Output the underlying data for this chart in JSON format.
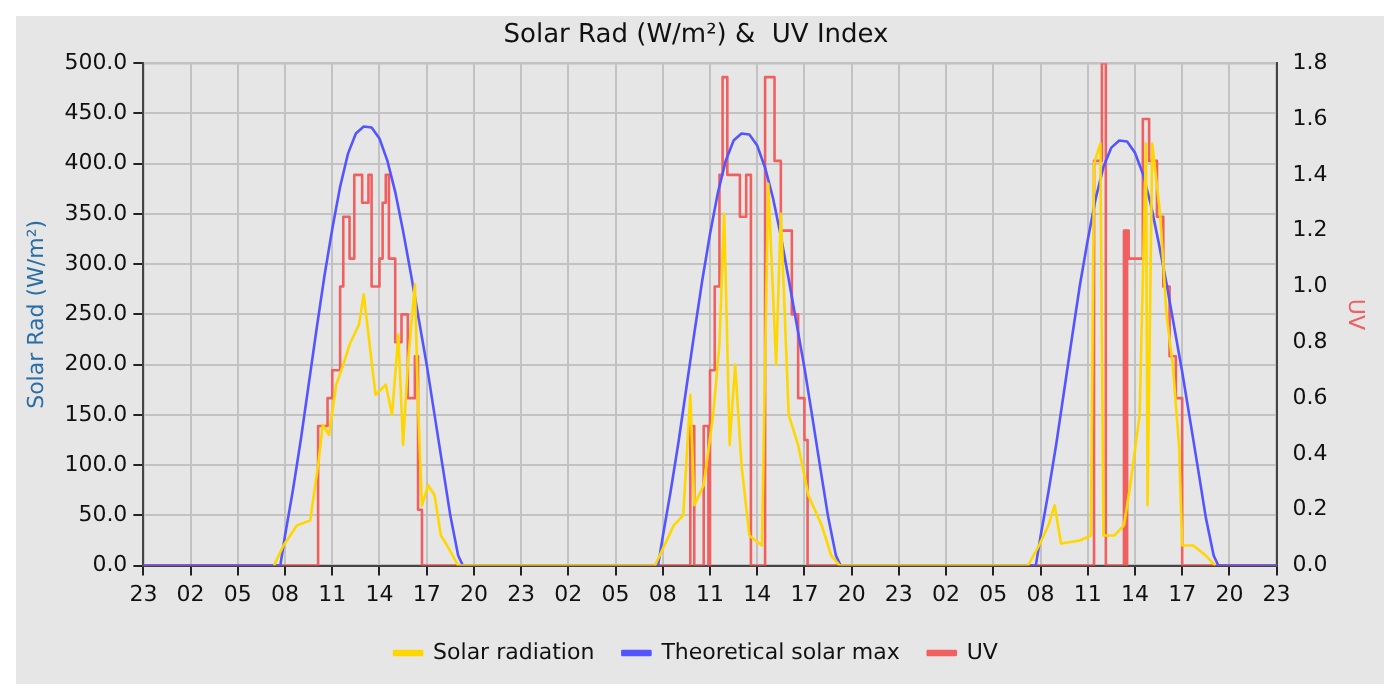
{
  "chart_data": {
    "type": "line",
    "title": "Solar Rad (W/m²) &  UV Index",
    "ylabel": "Solar Rad (W/m²)",
    "y2label": "UV",
    "xlim": [
      "--01-01T23:00",
      "--01-04T23:00"
    ],
    "xticks": [
      {
        "value": "--01-01T23:00",
        "label": "23"
      },
      {
        "value": "--01-02T02:00",
        "label": "02"
      },
      {
        "value": "--01-02T05:00",
        "label": "05"
      },
      {
        "value": "--01-02T08:00",
        "label": "08"
      },
      {
        "value": "--01-02T11:00",
        "label": "11"
      },
      {
        "value": "--01-02T14:00",
        "label": "14"
      },
      {
        "value": "--01-02T17:00",
        "label": "17"
      },
      {
        "value": "--01-02T20:00",
        "label": "20"
      },
      {
        "value": "--01-02T23:00",
        "label": "23"
      },
      {
        "value": "--01-03T02:00",
        "label": "02"
      },
      {
        "value": "--01-03T05:00",
        "label": "05"
      },
      {
        "value": "--01-03T08:00",
        "label": "08"
      },
      {
        "value": "--01-03T11:00",
        "label": "11"
      },
      {
        "value": "--01-03T14:00",
        "label": "14"
      },
      {
        "value": "--01-03T17:00",
        "label": "17"
      },
      {
        "value": "--01-03T20:00",
        "label": "20"
      },
      {
        "value": "--01-03T23:00",
        "label": "23"
      },
      {
        "value": "--01-04T02:00",
        "label": "02"
      },
      {
        "value": "--01-04T05:00",
        "label": "05"
      },
      {
        "value": "--01-04T08:00",
        "label": "08"
      },
      {
        "value": "--01-04T11:00",
        "label": "11"
      },
      {
        "value": "--01-04T14:00",
        "label": "14"
      },
      {
        "value": "--01-04T17:00",
        "label": "17"
      },
      {
        "value": "--01-04T20:00",
        "label": "20"
      },
      {
        "value": "--01-04T23:00",
        "label": "23"
      }
    ],
    "ylim": [
      0,
      500
    ],
    "yticks": [
      {
        "value": 0,
        "label": "0.0"
      },
      {
        "value": 50,
        "label": "50.0"
      },
      {
        "value": 100,
        "label": "100.0"
      },
      {
        "value": 150,
        "label": "150.0"
      },
      {
        "value": 200,
        "label": "200.0"
      },
      {
        "value": 250,
        "label": "250.0"
      },
      {
        "value": 300,
        "label": "300.0"
      },
      {
        "value": 350,
        "label": "350.0"
      },
      {
        "value": 400,
        "label": "400.0"
      },
      {
        "value": 450,
        "label": "450.0"
      },
      {
        "value": 500,
        "label": "500.0"
      }
    ],
    "y2lim": [
      0,
      1.8
    ],
    "y2ticks": [
      {
        "value": 0,
        "label": "0.0"
      },
      {
        "value": 0.2,
        "label": "0.2"
      },
      {
        "value": 0.4,
        "label": "0.4"
      },
      {
        "value": 0.6,
        "label": "0.6"
      },
      {
        "value": 0.8,
        "label": "0.8"
      },
      {
        "value": 1,
        "label": "1.0"
      },
      {
        "value": 1.2,
        "label": "1.2"
      },
      {
        "value": 1.4,
        "label": "1.4"
      },
      {
        "value": 1.6,
        "label": "1.6"
      },
      {
        "value": 1.8,
        "label": "1.8"
      }
    ],
    "grid": true,
    "legend": "bottom",
    "marker": "none",
    "series": [
      {
        "name": "Solar radiation",
        "color": "#ffd700",
        "x": [
          "--01-02T07:18",
          "--01-02T07:54",
          "--01-02T08:45",
          "--01-02T09:36",
          "--01-02T10:06",
          "--01-02T10:24",
          "--01-02T10:48",
          "--01-02T11:15",
          "--01-02T11:42",
          "--01-02T12:06",
          "--01-02T12:42",
          "--01-02T13:00",
          "--01-02T13:18",
          "--01-02T13:45",
          "--01-02T14:24",
          "--01-02T14:48",
          "--01-02T15:12",
          "--01-02T15:30",
          "--01-02T15:48",
          "--01-02T16:15",
          "--01-02T16:27",
          "--01-02T16:42",
          "--01-02T17:06",
          "--01-02T17:30",
          "--01-02T17:54",
          "--01-02T18:18",
          "--01-02T19:00",
          "--01-03T07:30",
          "--01-03T08:06",
          "--01-03T08:42",
          "--01-03T09:18",
          "--01-03T09:45",
          "--01-03T10:00",
          "--01-03T10:36",
          "--01-03T11:12",
          "--01-03T11:36",
          "--01-03T11:54",
          "--01-03T12:15",
          "--01-03T12:36",
          "--01-03T13:00",
          "--01-03T13:30",
          "--01-03T14:18",
          "--01-03T14:42",
          "--01-03T15:12",
          "--01-03T15:30",
          "--01-03T16:00",
          "--01-03T16:36",
          "--01-03T17:15",
          "--01-03T18:06",
          "--01-03T18:42",
          "--01-03T19:15",
          "--01-04T07:12",
          "--01-04T07:54",
          "--01-04T08:30",
          "--01-04T08:54",
          "--01-04T09:18",
          "--01-04T10:30",
          "--01-04T11:12",
          "--01-04T11:24",
          "--01-04T11:48",
          "--01-04T12:00",
          "--01-04T12:42",
          "--01-04T13:18",
          "--01-04T13:42",
          "--01-04T14:18",
          "--01-04T14:42",
          "--01-04T14:48",
          "--01-04T15:06",
          "--01-04T15:36",
          "--01-04T16:00",
          "--01-04T16:24",
          "--01-04T16:48",
          "--01-04T17:00",
          "--01-04T17:42",
          "--01-04T18:30",
          "--01-04T19:06"
        ],
        "values": [
          0,
          20,
          40,
          45,
          100,
          140,
          130,
          180,
          200,
          220,
          240,
          270,
          230,
          170,
          180,
          150,
          230,
          120,
          200,
          280,
          160,
          60,
          80,
          70,
          30,
          20,
          0,
          0,
          20,
          40,
          50,
          170,
          60,
          80,
          150,
          220,
          350,
          120,
          200,
          100,
          30,
          20,
          380,
          200,
          350,
          150,
          120,
          70,
          40,
          10,
          0,
          0,
          20,
          40,
          60,
          22,
          25,
          30,
          400,
          420,
          30,
          30,
          40,
          80,
          150,
          420,
          60,
          420,
          350,
          250,
          200,
          120,
          20,
          20,
          10,
          0
        ]
      },
      {
        "name": "Theoretical solar max",
        "color": "#5555ff",
        "x": [
          "--01-01T23:00",
          "--01-02T07:42",
          "--01-02T08:00",
          "--01-02T08:30",
          "--01-02T09:00",
          "--01-02T09:30",
          "--01-02T10:00",
          "--01-02T10:30",
          "--01-02T11:00",
          "--01-02T11:30",
          "--01-02T12:00",
          "--01-02T12:30",
          "--01-02T13:00",
          "--01-02T13:30",
          "--01-02T14:00",
          "--01-02T14:30",
          "--01-02T15:00",
          "--01-02T15:30",
          "--01-02T16:00",
          "--01-02T16:30",
          "--01-02T17:00",
          "--01-02T17:30",
          "--01-02T18:00",
          "--01-02T18:30",
          "--01-02T19:00",
          "--01-02T19:18",
          "--01-03T07:42",
          "--01-03T08:00",
          "--01-03T08:30",
          "--01-03T09:00",
          "--01-03T09:30",
          "--01-03T10:00",
          "--01-03T10:30",
          "--01-03T11:00",
          "--01-03T11:30",
          "--01-03T12:00",
          "--01-03T12:30",
          "--01-03T13:00",
          "--01-03T13:30",
          "--01-03T14:00",
          "--01-03T14:30",
          "--01-03T15:00",
          "--01-03T15:30",
          "--01-03T16:00",
          "--01-03T16:30",
          "--01-03T17:00",
          "--01-03T17:30",
          "--01-03T18:00",
          "--01-03T18:30",
          "--01-03T19:00",
          "--01-03T19:18",
          "--01-04T07:42",
          "--01-04T08:00",
          "--01-04T08:30",
          "--01-04T09:00",
          "--01-04T09:30",
          "--01-04T10:00",
          "--01-04T10:30",
          "--01-04T11:00",
          "--01-04T11:30",
          "--01-04T12:00",
          "--01-04T12:30",
          "--01-04T13:00",
          "--01-04T13:30",
          "--01-04T14:00",
          "--01-04T14:30",
          "--01-04T15:00",
          "--01-04T15:30",
          "--01-04T16:00",
          "--01-04T16:30",
          "--01-04T17:00",
          "--01-04T17:30",
          "--01-04T18:00",
          "--01-04T18:30",
          "--01-04T19:00",
          "--01-04T19:18",
          "--01-04T23:00"
        ],
        "values": [
          0,
          0,
          30,
          75,
          125,
          180,
          235,
          288,
          335,
          377,
          410,
          430,
          437,
          436,
          425,
          403,
          372,
          333,
          290,
          245,
          200,
          150,
          100,
          50,
          10,
          0,
          0,
          29,
          74,
          123,
          177,
          231,
          283,
          330,
          371,
          403,
          423,
          430,
          429,
          418,
          396,
          366,
          328,
          285,
          241,
          197,
          148,
          98,
          49,
          10,
          0,
          0,
          29,
          73,
          121,
          174,
          227,
          279,
          324,
          365,
          397,
          416,
          423,
          422,
          411,
          390,
          360,
          322,
          281,
          237,
          193,
          145,
          97,
          48,
          10,
          0,
          0
        ]
      },
      {
        "name": "UV",
        "type": "step",
        "axis": "y2",
        "color": "#f06060",
        "x": [
          "--01-01T23:00",
          "--01-02T10:06",
          "--01-02T10:42",
          "--01-02T11:00",
          "--01-02T11:30",
          "--01-02T11:42",
          "--01-02T12:06",
          "--01-02T12:24",
          "--01-02T12:54",
          "--01-02T13:18",
          "--01-02T13:30",
          "--01-02T14:00",
          "--01-02T14:12",
          "--01-02T14:24",
          "--01-02T14:36",
          "--01-02T15:00",
          "--01-02T15:24",
          "--01-02T15:48",
          "--01-02T16:15",
          "--01-02T16:27",
          "--01-02T16:42",
          "--01-03T09:45",
          "--01-03T10:00",
          "--01-03T10:36",
          "--01-03T10:54",
          "--01-03T11:00",
          "--01-03T11:18",
          "--01-03T11:36",
          "--01-03T11:48",
          "--01-03T12:06",
          "--01-03T12:30",
          "--01-03T12:54",
          "--01-03T13:18",
          "--01-03T13:36",
          "--01-03T14:30",
          "--01-03T15:06",
          "--01-03T15:30",
          "--01-03T16:12",
          "--01-03T16:36",
          "--01-03T17:00",
          "--01-03T17:12",
          "--01-04T11:24",
          "--01-04T11:54",
          "--01-04T12:09",
          "--01-04T13:18",
          "--01-04T13:27",
          "--01-04T13:30",
          "--01-04T13:36",
          "--01-04T14:06",
          "--01-04T14:30",
          "--01-04T14:54",
          "--01-04T15:24",
          "--01-04T15:48",
          "--01-04T16:12",
          "--01-04T16:36",
          "--01-04T17:00",
          "--01-04T23:00"
        ],
        "values": [
          0,
          0.5,
          0.6,
          0.7,
          1.0,
          1.25,
          1.1,
          1.4,
          1.3,
          1.4,
          1.0,
          1.1,
          1.3,
          1.4,
          1.1,
          0.8,
          0.9,
          0.6,
          0.75,
          0.2,
          0,
          0.5,
          0,
          0.5,
          0,
          0.7,
          1.0,
          1.4,
          1.75,
          1.4,
          1.4,
          1.25,
          1.4,
          0,
          1.75,
          1.45,
          1.2,
          0.9,
          0.6,
          0.45,
          0,
          1.45,
          1.8,
          0,
          1.2,
          0,
          1.2,
          1.1,
          1.1,
          1.6,
          1.45,
          1.25,
          1.0,
          0.75,
          0.6,
          0,
          0
        ]
      }
    ]
  }
}
